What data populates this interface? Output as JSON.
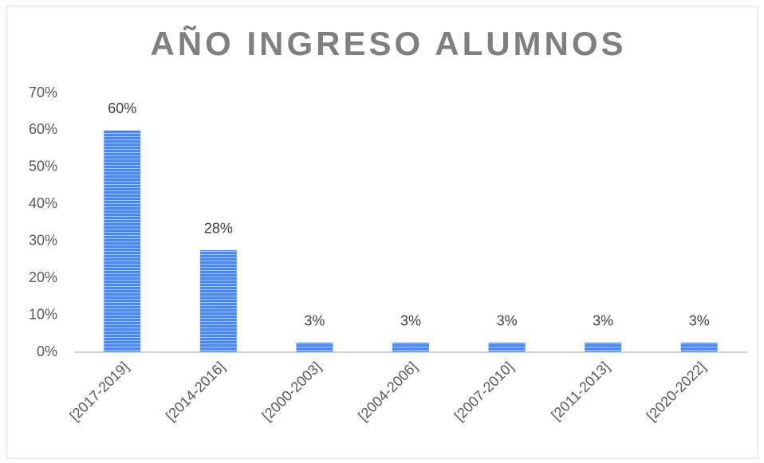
{
  "chart_data": {
    "type": "bar",
    "title": "AÑO INGRESO ALUMNOS",
    "categories": [
      "[2017-2019]",
      "[2014-2016]",
      "[2000-2003]",
      "[2004-2006]",
      "[2007-2010]",
      "[2011-2013]",
      "[2020-2022]"
    ],
    "values": [
      60,
      27.6,
      2.6,
      2.6,
      2.6,
      2.6,
      2.6
    ],
    "value_labels": [
      "60%",
      "28%",
      "3%",
      "3%",
      "3%",
      "3%",
      "3%"
    ],
    "color": "#4f86e8",
    "ylim": [
      0,
      70
    ],
    "yticks": [
      {
        "value": 0,
        "label": "0%"
      },
      {
        "value": 10,
        "label": "10%"
      },
      {
        "value": 20,
        "label": "20%"
      },
      {
        "value": 30,
        "label": "30%"
      },
      {
        "value": 40,
        "label": "40%"
      },
      {
        "value": 50,
        "label": "50%"
      },
      {
        "value": 60,
        "label": "60%"
      },
      {
        "value": 70,
        "label": "70%"
      }
    ],
    "grid": false
  }
}
